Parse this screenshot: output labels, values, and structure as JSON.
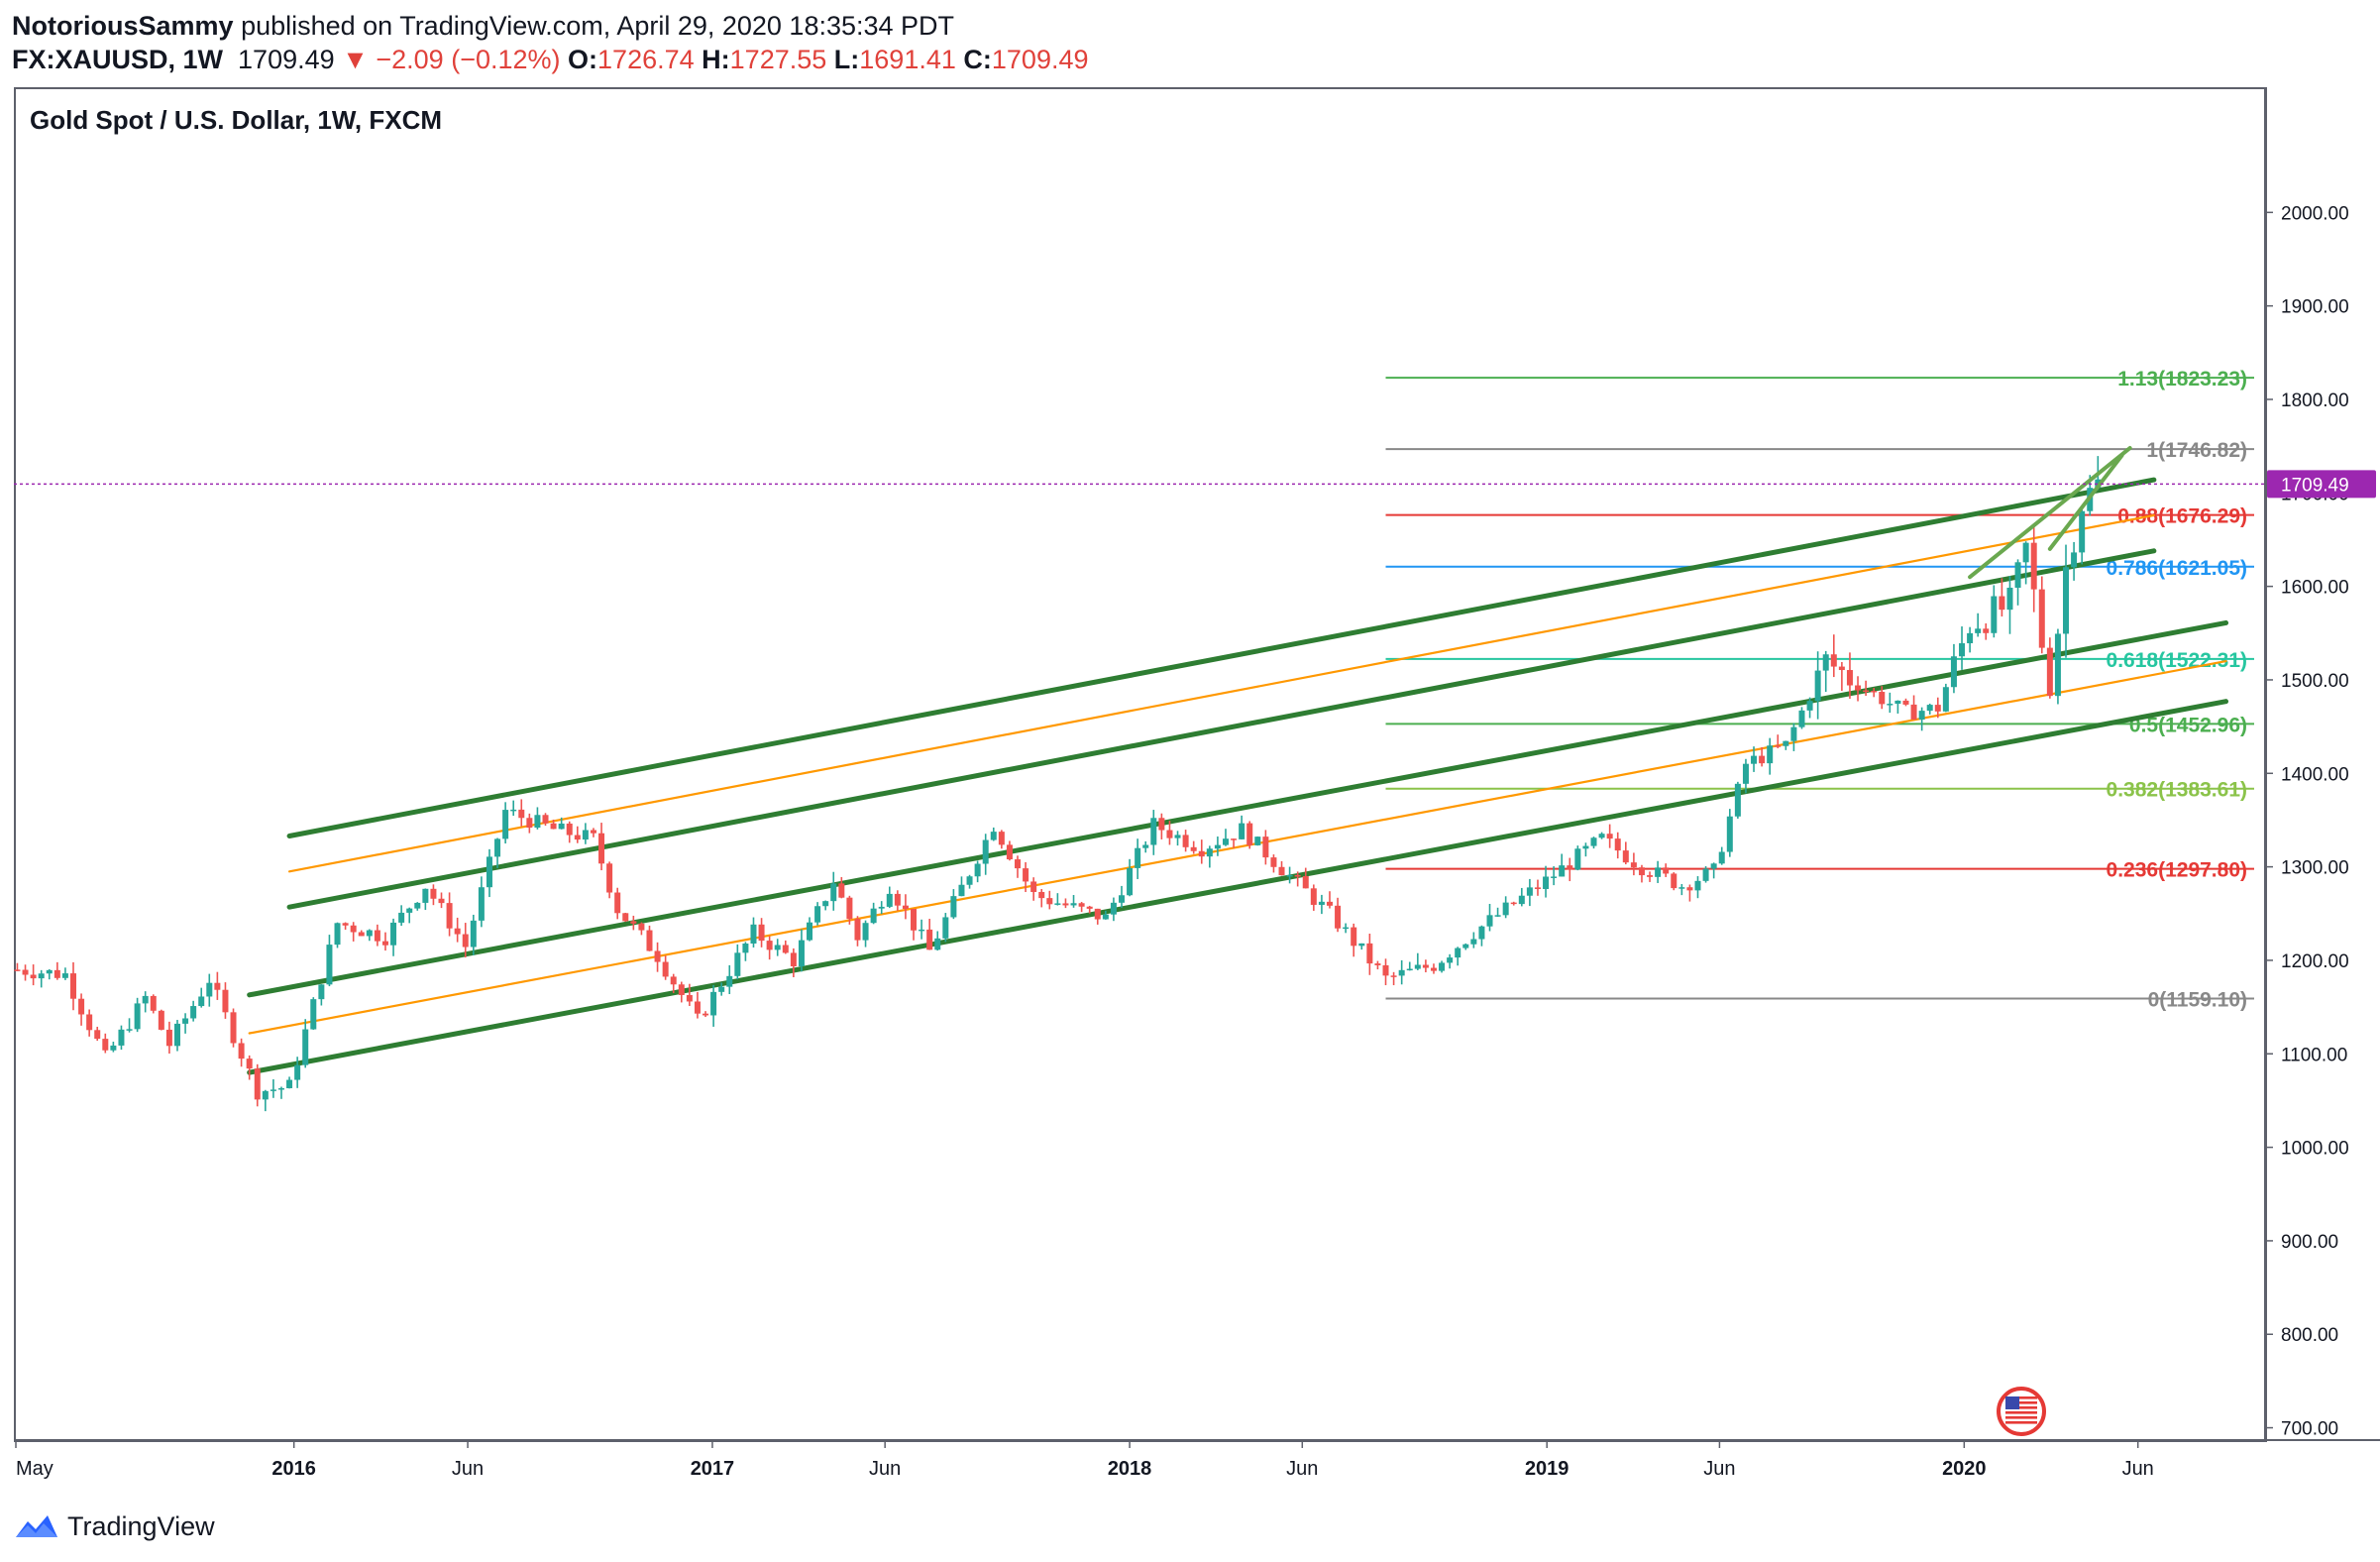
{
  "header": {
    "author": "NotoriousSammy",
    "published_text": "published on TradingView.com, April 29, 2020 18:35:34 PDT",
    "symbol": "FX:XAUUSD, 1W",
    "last": "1709.49",
    "change": "▼ −2.09 (−0.12%)",
    "o_label": "O:",
    "o_value": "1726.74",
    "h_label": "H:",
    "h_value": "1727.55",
    "l_label": "L:",
    "l_value": "1691.41",
    "c_label": "C:",
    "c_value": "1709.49"
  },
  "chart_title": "Gold Spot / U.S. Dollar, 1W, FXCM",
  "footer": {
    "brand": "TradingView"
  },
  "colors": {
    "up": "#26a69a",
    "down": "#ef5350",
    "channel": "#2e7d32",
    "mid": "#ff9800",
    "last_tag": "#9c27b0"
  },
  "chart_data": {
    "type": "candlestick",
    "ylim": [
      690,
      2100
    ],
    "x_range": [
      "2015-05-01",
      "2020-08-20"
    ],
    "y_ticks": [
      "2000.00",
      "1900.00",
      "1800.00",
      "1700.00",
      "1600.00",
      "1500.00",
      "1400.00",
      "1300.00",
      "1200.00",
      "1100.00",
      "1000.00",
      "900.00",
      "800.00",
      "700.00"
    ],
    "y_tick_values": [
      2000,
      1900,
      1800,
      1700,
      1600,
      1500,
      1400,
      1300,
      1200,
      1100,
      1000,
      900,
      800,
      700
    ],
    "x_ticks": [
      {
        "label": "May",
        "date": "2015-05-01",
        "bold": false
      },
      {
        "label": "2016",
        "date": "2016-01-01",
        "bold": true
      },
      {
        "label": "Jun",
        "date": "2016-06-01",
        "bold": false
      },
      {
        "label": "2017",
        "date": "2017-01-01",
        "bold": true
      },
      {
        "label": "Jun",
        "date": "2017-06-01",
        "bold": false
      },
      {
        "label": "2018",
        "date": "2018-01-01",
        "bold": true
      },
      {
        "label": "Jun",
        "date": "2018-06-01",
        "bold": false
      },
      {
        "label": "2019",
        "date": "2019-01-01",
        "bold": true
      },
      {
        "label": "Jun",
        "date": "2019-06-01",
        "bold": false
      },
      {
        "label": "2020",
        "date": "2020-01-01",
        "bold": true
      },
      {
        "label": "Jun",
        "date": "2020-06-01",
        "bold": false
      }
    ],
    "last_price": {
      "value": 1709.49,
      "label": "1709.49"
    },
    "fib": {
      "start_date": "2018-08-13",
      "end_date": "2020-08-10",
      "levels": [
        {
          "ratio": "1.13",
          "price": 1823.23,
          "label": "1.13(1823.23)",
          "color": "#4caf50"
        },
        {
          "ratio": "1",
          "price": 1746.82,
          "label": "1(1746.82)",
          "color": "#888888"
        },
        {
          "ratio": "0.88",
          "price": 1676.29,
          "label": "0.88(1676.29)",
          "color": "#e53935"
        },
        {
          "ratio": "0.786",
          "price": 1621.05,
          "label": "0.786(1621.05)",
          "color": "#2196f3"
        },
        {
          "ratio": "0.618",
          "price": 1522.31,
          "label": "0.618(1522.31)",
          "color": "#26c6a0"
        },
        {
          "ratio": "0.5",
          "price": 1452.96,
          "label": "0.5(1452.96)",
          "color": "#4caf50"
        },
        {
          "ratio": "0.382",
          "price": 1383.61,
          "label": "0.382(1383.61)",
          "color": "#8bc34a"
        },
        {
          "ratio": "0.236",
          "price": 1297.8,
          "label": "0.236(1297.80)",
          "color": "#e53935"
        },
        {
          "ratio": "0",
          "price": 1159.1,
          "label": "0(1159.10)",
          "color": "#888888"
        }
      ]
    },
    "channels": [
      {
        "kind": "main",
        "d1": "2015-12-28",
        "p1": 1333,
        "d2": "2020-06-15",
        "p2": 1714
      },
      {
        "kind": "mid",
        "d1": "2015-12-28",
        "p1": 1295,
        "d2": "2020-06-15",
        "p2": 1676
      },
      {
        "kind": "main",
        "d1": "2015-12-28",
        "p1": 1257,
        "d2": "2020-06-15",
        "p2": 1638
      },
      {
        "kind": "main",
        "d1": "2015-11-23",
        "p1": 1163,
        "d2": "2020-08-17",
        "p2": 1561
      },
      {
        "kind": "mid",
        "d1": "2015-11-23",
        "p1": 1122,
        "d2": "2020-08-17",
        "p2": 1520
      },
      {
        "kind": "main",
        "d1": "2015-11-23",
        "p1": 1080,
        "d2": "2020-08-17",
        "p2": 1477
      }
    ],
    "wedge": [
      {
        "d1": "2020-01-06",
        "p1": 1610,
        "d2": "2020-05-25",
        "p2": 1748
      },
      {
        "d1": "2020-03-16",
        "p1": 1640,
        "d2": "2020-05-18",
        "p2": 1740
      }
    ],
    "anchors": [
      {
        "date": "2015-05-04",
        "price": 1190
      },
      {
        "date": "2015-06-15",
        "price": 1185
      },
      {
        "date": "2015-07-20",
        "price": 1095
      },
      {
        "date": "2015-08-24",
        "price": 1160
      },
      {
        "date": "2015-09-14",
        "price": 1110
      },
      {
        "date": "2015-10-19",
        "price": 1180
      },
      {
        "date": "2015-11-30",
        "price": 1060
      },
      {
        "date": "2015-12-28",
        "price": 1065
      },
      {
        "date": "2016-02-08",
        "price": 1240
      },
      {
        "date": "2016-03-21",
        "price": 1225
      },
      {
        "date": "2016-04-25",
        "price": 1280
      },
      {
        "date": "2016-05-30",
        "price": 1215
      },
      {
        "date": "2016-07-04",
        "price": 1360
      },
      {
        "date": "2016-08-15",
        "price": 1340
      },
      {
        "date": "2016-09-19",
        "price": 1330
      },
      {
        "date": "2016-10-10",
        "price": 1255
      },
      {
        "date": "2016-11-14",
        "price": 1205
      },
      {
        "date": "2016-12-19",
        "price": 1135
      },
      {
        "date": "2017-02-06",
        "price": 1230
      },
      {
        "date": "2017-03-13",
        "price": 1200
      },
      {
        "date": "2017-04-17",
        "price": 1285
      },
      {
        "date": "2017-05-08",
        "price": 1225
      },
      {
        "date": "2017-06-05",
        "price": 1280
      },
      {
        "date": "2017-07-10",
        "price": 1210
      },
      {
        "date": "2017-09-04",
        "price": 1345
      },
      {
        "date": "2017-10-09",
        "price": 1270
      },
      {
        "date": "2017-12-11",
        "price": 1245
      },
      {
        "date": "2018-01-22",
        "price": 1345
      },
      {
        "date": "2018-03-05",
        "price": 1320
      },
      {
        "date": "2018-04-09",
        "price": 1340
      },
      {
        "date": "2018-05-21",
        "price": 1290
      },
      {
        "date": "2018-06-25",
        "price": 1250
      },
      {
        "date": "2018-08-13",
        "price": 1180
      },
      {
        "date": "2018-09-24",
        "price": 1195
      },
      {
        "date": "2018-10-29",
        "price": 1230
      },
      {
        "date": "2018-12-31",
        "price": 1285
      },
      {
        "date": "2019-02-18",
        "price": 1330
      },
      {
        "date": "2019-03-25",
        "price": 1300
      },
      {
        "date": "2019-04-29",
        "price": 1280
      },
      {
        "date": "2019-05-27",
        "price": 1295
      },
      {
        "date": "2019-06-24",
        "price": 1410
      },
      {
        "date": "2019-07-29",
        "price": 1430
      },
      {
        "date": "2019-09-02",
        "price": 1520
      },
      {
        "date": "2019-10-07",
        "price": 1490
      },
      {
        "date": "2019-11-11",
        "price": 1465
      },
      {
        "date": "2019-12-09",
        "price": 1470
      },
      {
        "date": "2020-01-06",
        "price": 1560
      },
      {
        "date": "2020-02-10",
        "price": 1580
      },
      {
        "date": "2020-02-24",
        "price": 1640
      },
      {
        "date": "2020-03-16",
        "price": 1490
      },
      {
        "date": "2020-03-30",
        "price": 1620
      },
      {
        "date": "2020-04-13",
        "price": 1690
      },
      {
        "date": "2020-04-27",
        "price": 1709
      }
    ]
  }
}
